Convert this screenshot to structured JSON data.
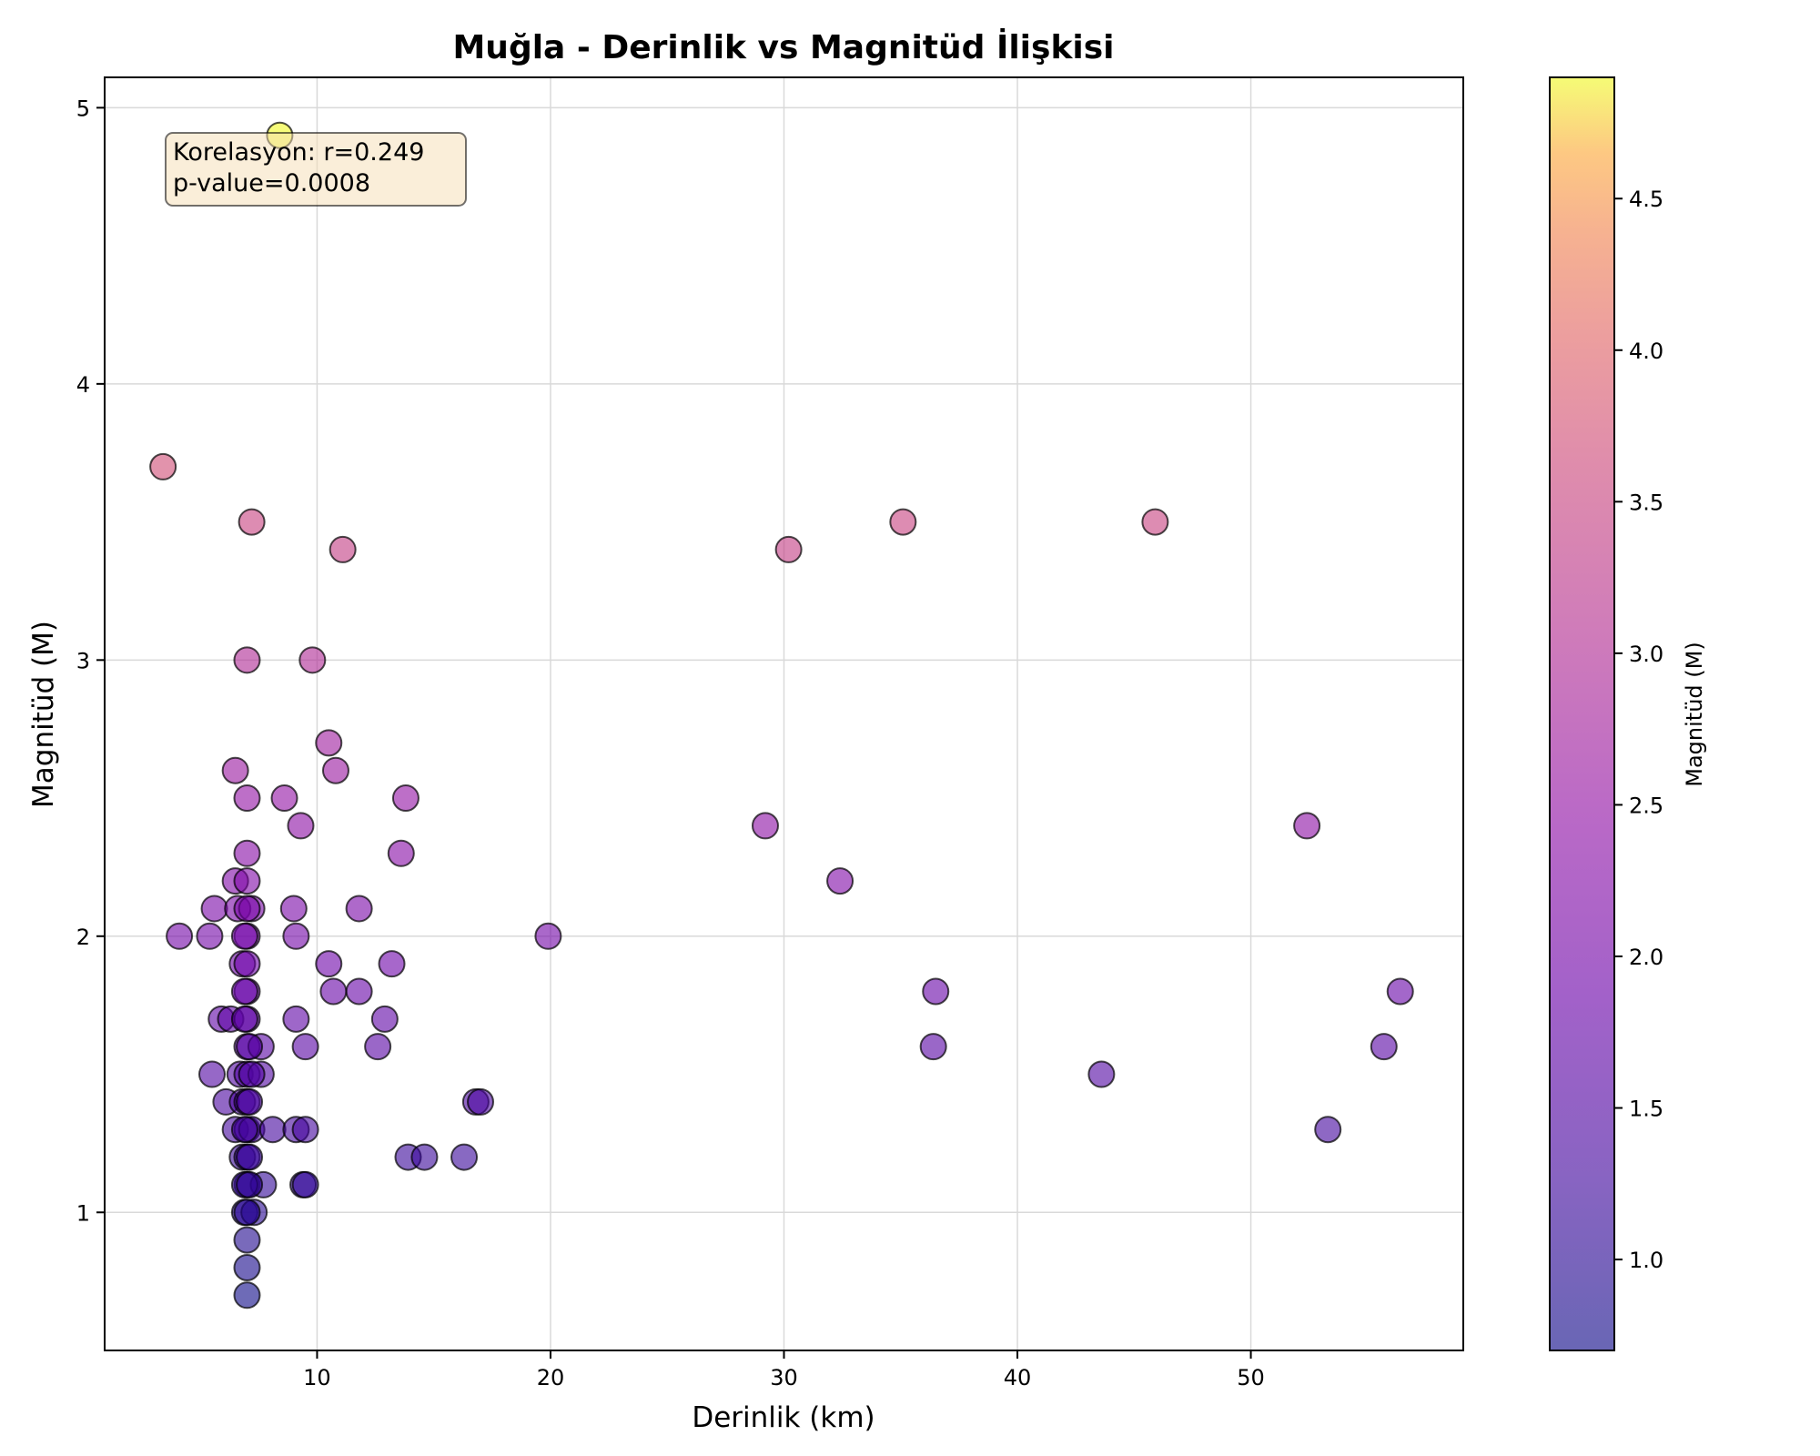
{
  "chart_data": {
    "type": "scatter",
    "title": "Muğla - Derinlik vs Magnitüd İlişkisi",
    "xlabel": "Derinlik (km)",
    "ylabel": "Magnitüd (M)",
    "xlim": [
      0.9,
      59.1
    ],
    "ylim": [
      0.5,
      5.11
    ],
    "xticks": [
      10,
      20,
      30,
      40,
      50
    ],
    "yticks": [
      1,
      2,
      3,
      4,
      5
    ],
    "grid": true,
    "colormap": "plasma",
    "colorbar": {
      "label": "Magnitüd (M)",
      "range": [
        0.7,
        4.9
      ],
      "ticks": [
        1.0,
        1.5,
        2.0,
        2.5,
        3.0,
        3.5,
        4.0,
        4.5
      ],
      "tick_labels": [
        "1.0",
        "1.5",
        "2.0",
        "2.5",
        "3.0",
        "3.5",
        "4.0",
        "4.5"
      ]
    },
    "annotation": {
      "lines": [
        "Korelasyon: r=0.249",
        "p-value=0.0008"
      ],
      "box_color": "#f5deb3",
      "location": "upper-left"
    },
    "colors": {
      "point_edge": "#000000",
      "grid": "#d9d9d9"
    },
    "points": [
      [
        8.4,
        4.9
      ],
      [
        3.4,
        3.7
      ],
      [
        7.2,
        3.5
      ],
      [
        11.1,
        3.4
      ],
      [
        7.0,
        3.0
      ],
      [
        9.8,
        3.0
      ],
      [
        30.2,
        3.4
      ],
      [
        35.1,
        3.5
      ],
      [
        45.9,
        3.5
      ],
      [
        10.5,
        2.7
      ],
      [
        6.5,
        2.6
      ],
      [
        10.8,
        2.6
      ],
      [
        7.0,
        2.5
      ],
      [
        8.6,
        2.5
      ],
      [
        13.8,
        2.5
      ],
      [
        9.3,
        2.4
      ],
      [
        7.0,
        2.3
      ],
      [
        13.6,
        2.3
      ],
      [
        6.5,
        2.2
      ],
      [
        7.0,
        2.2
      ],
      [
        5.6,
        2.1
      ],
      [
        6.6,
        2.1
      ],
      [
        7.2,
        2.1
      ],
      [
        9.0,
        2.1
      ],
      [
        11.8,
        2.1
      ],
      [
        7.0,
        2.1
      ],
      [
        4.1,
        2.0
      ],
      [
        5.4,
        2.0
      ],
      [
        7.0,
        2.0
      ],
      [
        9.1,
        2.0
      ],
      [
        19.9,
        2.0
      ],
      [
        6.9,
        2.0
      ],
      [
        6.8,
        1.9
      ],
      [
        7.0,
        1.9
      ],
      [
        10.5,
        1.9
      ],
      [
        13.2,
        1.9
      ],
      [
        7.0,
        1.8
      ],
      [
        10.7,
        1.8
      ],
      [
        11.8,
        1.8
      ],
      [
        6.9,
        1.8
      ],
      [
        5.9,
        1.7
      ],
      [
        6.3,
        1.7
      ],
      [
        7.0,
        1.7
      ],
      [
        9.1,
        1.7
      ],
      [
        12.9,
        1.7
      ],
      [
        6.9,
        1.7
      ],
      [
        7.0,
        1.6
      ],
      [
        7.6,
        1.6
      ],
      [
        9.5,
        1.6
      ],
      [
        12.6,
        1.6
      ],
      [
        7.1,
        1.6
      ],
      [
        5.5,
        1.5
      ],
      [
        6.7,
        1.5
      ],
      [
        7.0,
        1.5
      ],
      [
        7.6,
        1.5
      ],
      [
        7.2,
        1.5
      ],
      [
        6.1,
        1.4
      ],
      [
        6.8,
        1.4
      ],
      [
        7.0,
        1.4
      ],
      [
        16.8,
        1.4
      ],
      [
        17.0,
        1.4
      ],
      [
        7.1,
        1.4
      ],
      [
        6.5,
        1.3
      ],
      [
        7.0,
        1.3
      ],
      [
        7.2,
        1.3
      ],
      [
        8.1,
        1.3
      ],
      [
        9.1,
        1.3
      ],
      [
        9.5,
        1.3
      ],
      [
        6.9,
        1.3
      ],
      [
        6.8,
        1.2
      ],
      [
        7.0,
        1.2
      ],
      [
        13.9,
        1.2
      ],
      [
        14.6,
        1.2
      ],
      [
        16.3,
        1.2
      ],
      [
        7.1,
        1.2
      ],
      [
        7.0,
        1.1
      ],
      [
        7.7,
        1.1
      ],
      [
        9.4,
        1.1
      ],
      [
        9.5,
        1.1
      ],
      [
        6.9,
        1.1
      ],
      [
        7.1,
        1.1
      ],
      [
        6.9,
        1.0
      ],
      [
        7.3,
        1.0
      ],
      [
        7.0,
        1.0
      ],
      [
        7.0,
        0.9
      ],
      [
        7.0,
        0.8
      ],
      [
        7.0,
        0.7
      ],
      [
        29.2,
        2.4
      ],
      [
        32.4,
        2.2
      ],
      [
        36.5,
        1.8
      ],
      [
        36.4,
        1.6
      ],
      [
        43.6,
        1.5
      ],
      [
        52.4,
        2.4
      ],
      [
        56.4,
        1.8
      ],
      [
        55.7,
        1.6
      ],
      [
        53.3,
        1.3
      ]
    ]
  }
}
